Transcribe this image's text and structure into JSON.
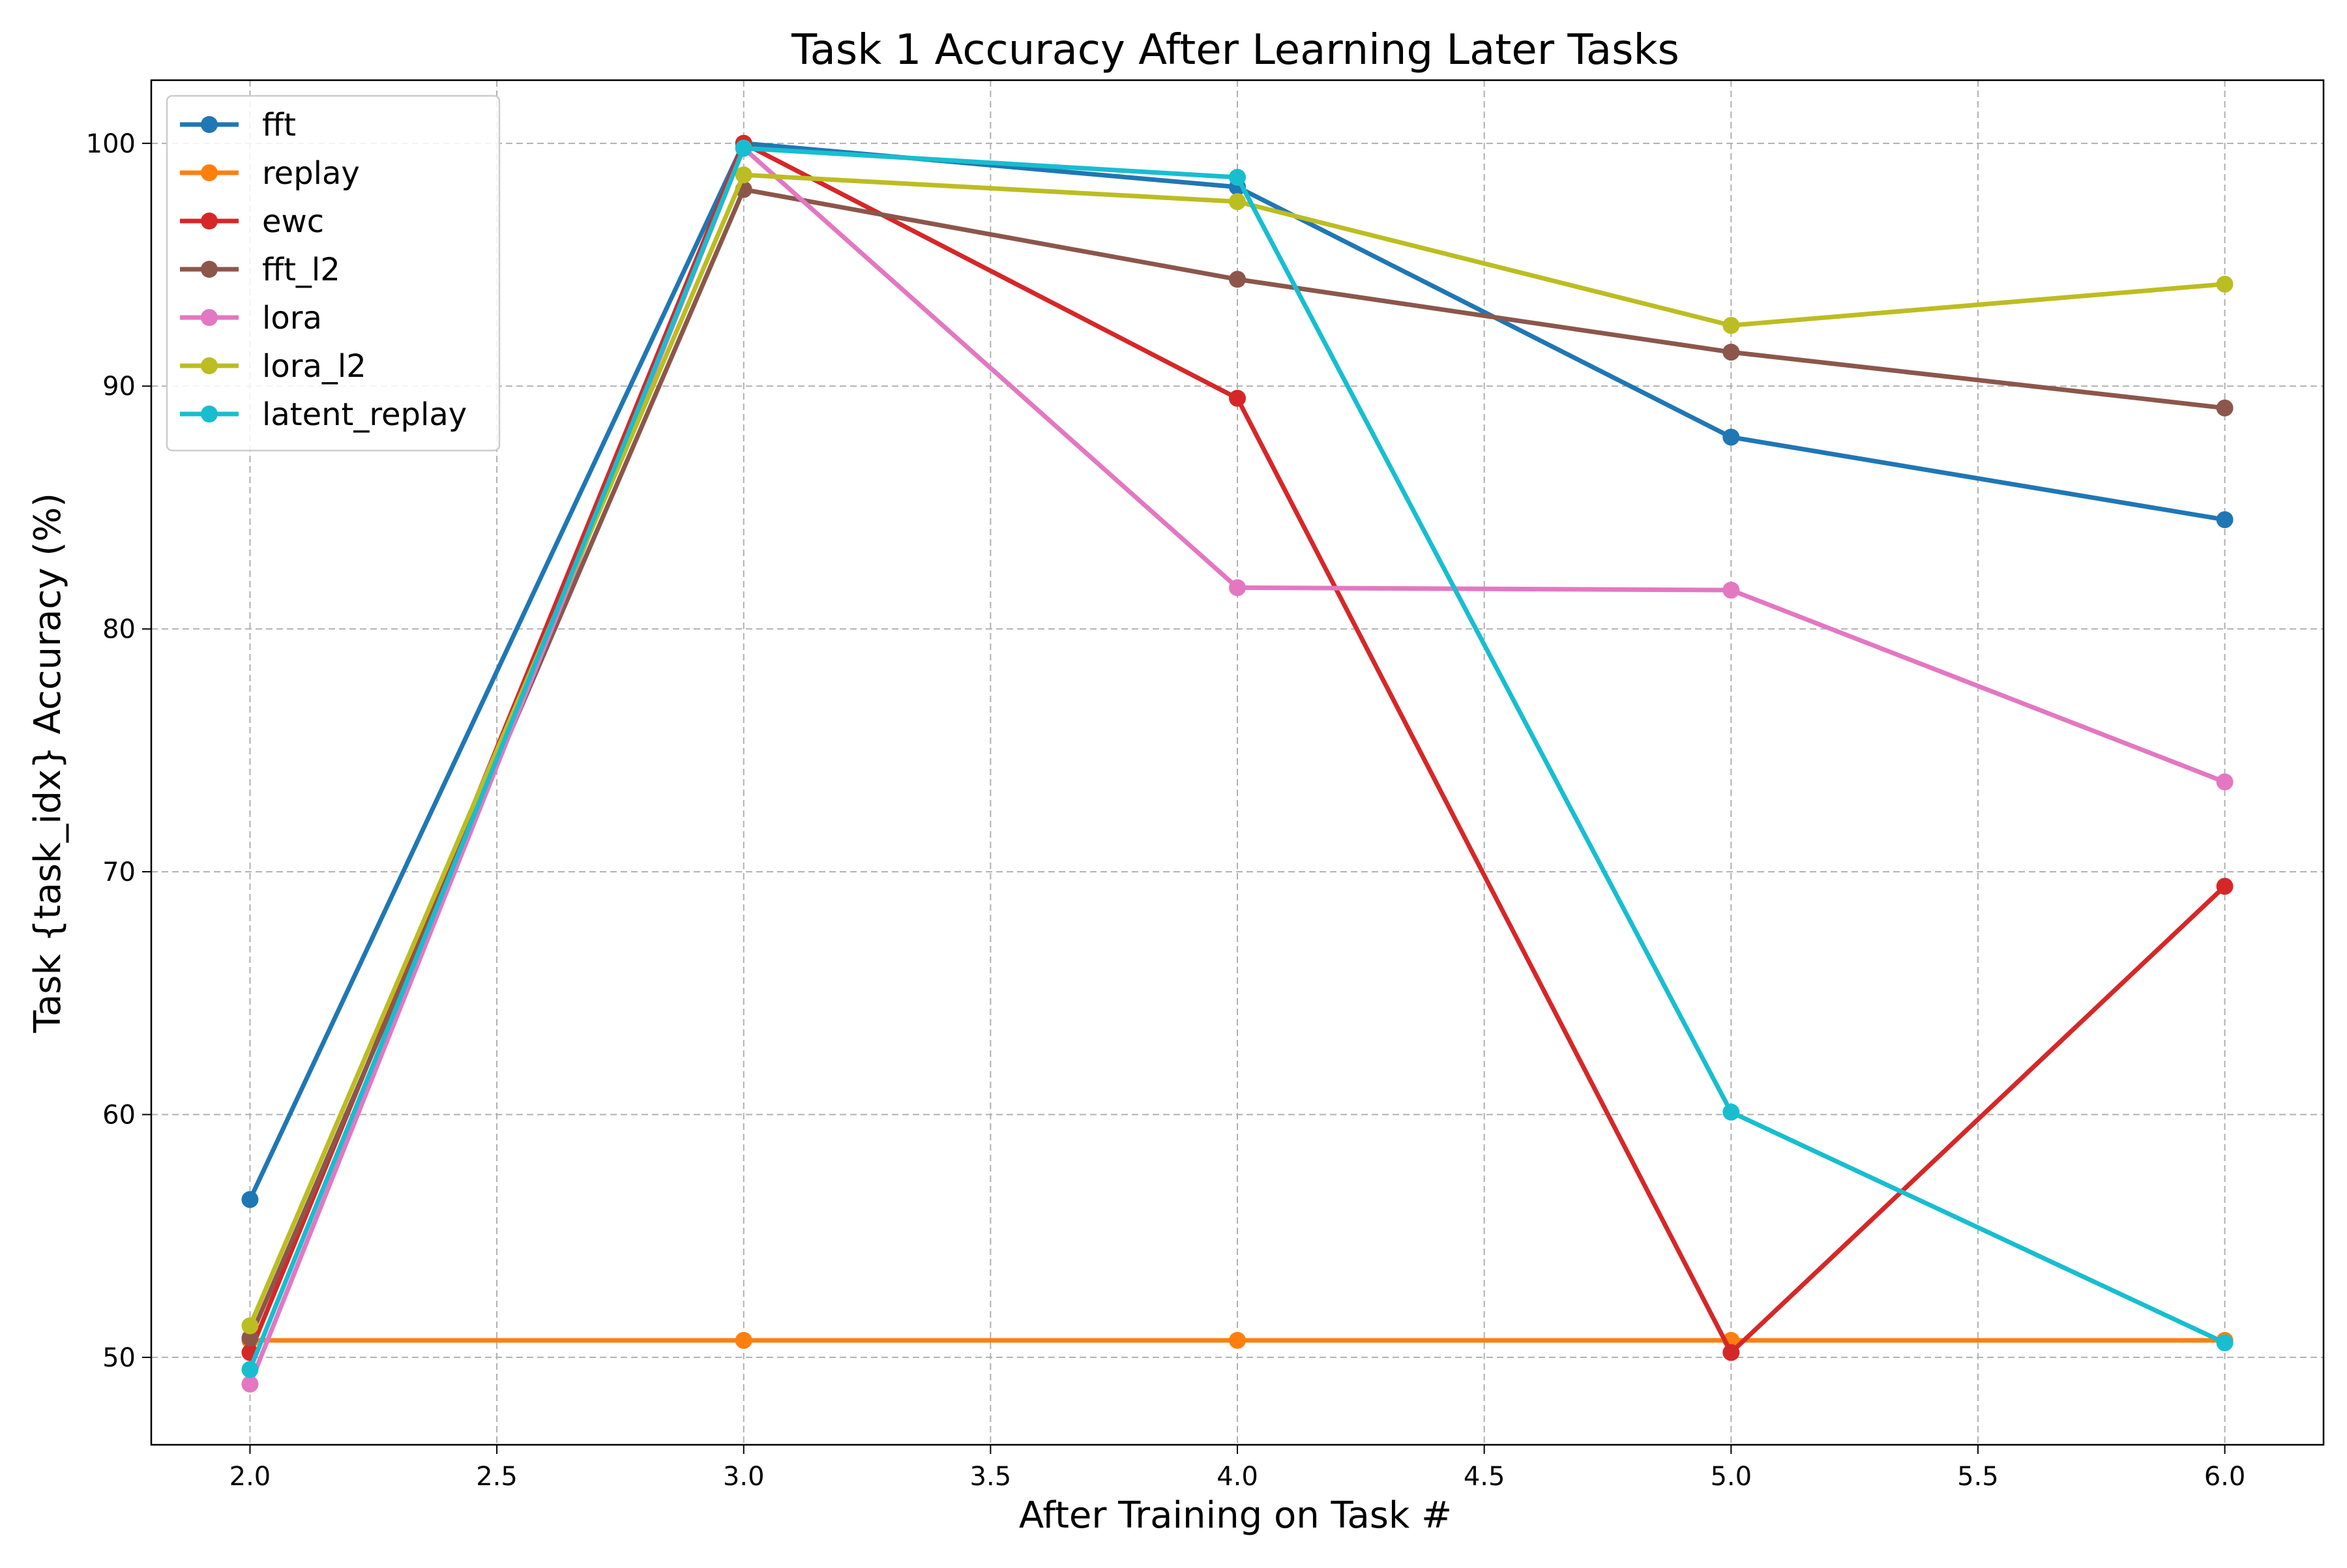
{
  "chart_data": {
    "type": "line",
    "title": "Task 1 Accuracy After Learning Later Tasks",
    "xlabel": "After Training on Task #",
    "ylabel": "Task {task_idx} Accuracy (%)",
    "x": [
      2.0,
      3.0,
      4.0,
      5.0,
      6.0
    ],
    "xlim": [
      1.8,
      6.2
    ],
    "ylim": [
      46.4,
      102.6
    ],
    "xticks": [
      "2.0",
      "2.5",
      "3.0",
      "3.5",
      "4.0",
      "4.5",
      "5.0",
      "5.5",
      "6.0"
    ],
    "yticks": [
      "50",
      "60",
      "70",
      "80",
      "90",
      "100"
    ],
    "grid": true,
    "legend_position": "upper-left",
    "series": [
      {
        "name": "fft",
        "color": "#1f77b4",
        "values": [
          56.5,
          100.0,
          98.2,
          87.9,
          84.5
        ]
      },
      {
        "name": "replay",
        "color": "#ff7f0e",
        "values": [
          50.7,
          50.7,
          50.7,
          50.7,
          50.7
        ]
      },
      {
        "name": "ewc",
        "color": "#d62728",
        "values": [
          50.2,
          100.0,
          89.5,
          50.2,
          69.4
        ]
      },
      {
        "name": "fft_l2",
        "color": "#8c564b",
        "values": [
          50.8,
          98.1,
          94.4,
          91.4,
          89.1
        ]
      },
      {
        "name": "lora",
        "color": "#e377c2",
        "values": [
          48.9,
          99.8,
          81.7,
          81.6,
          73.7
        ]
      },
      {
        "name": "lora_l2",
        "color": "#bcbd22",
        "values": [
          51.3,
          98.7,
          97.6,
          92.5,
          94.2
        ]
      },
      {
        "name": "latent_replay",
        "color": "#17becf",
        "values": [
          49.5,
          99.8,
          98.6,
          60.1,
          50.6
        ]
      }
    ]
  }
}
